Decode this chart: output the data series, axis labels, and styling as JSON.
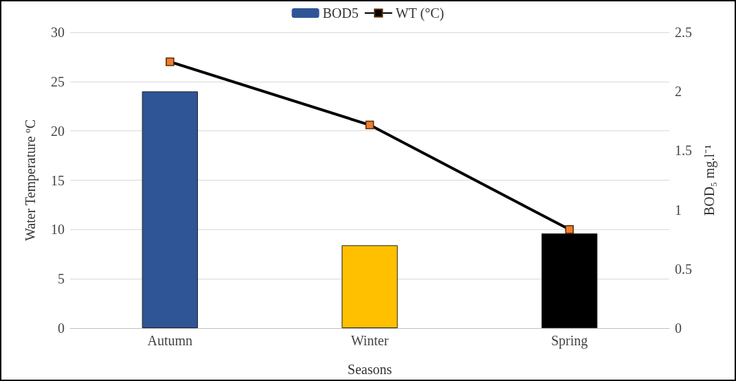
{
  "chart_data": {
    "type": "bar",
    "xlabel": "Seasons",
    "ylabel": "Water Temperature ºC",
    "y2label": "BOD₅ mg.l⁻¹",
    "categories": [
      "Autumn",
      "Winter",
      "Spring"
    ],
    "series": [
      {
        "name": "BOD5",
        "axis": "y2",
        "color": "#2f5597",
        "colors": [
          "#2f5597",
          "#ffc000",
          "#000000"
        ],
        "values": [
          2.0,
          0.7,
          0.8
        ]
      },
      {
        "name": "WT (°C)",
        "type": "line",
        "axis": "y",
        "color": "#000000",
        "marker": "square",
        "values": [
          27,
          20.6,
          10
        ]
      }
    ],
    "ylim": [
      0,
      30
    ],
    "yticks": [
      0,
      5,
      10,
      15,
      20,
      25,
      30
    ],
    "y2lim": [
      0,
      2.5
    ],
    "y2ticks": [
      0,
      0.5,
      1,
      1.5,
      2,
      2.5
    ],
    "grid": "y",
    "legend": "top"
  }
}
